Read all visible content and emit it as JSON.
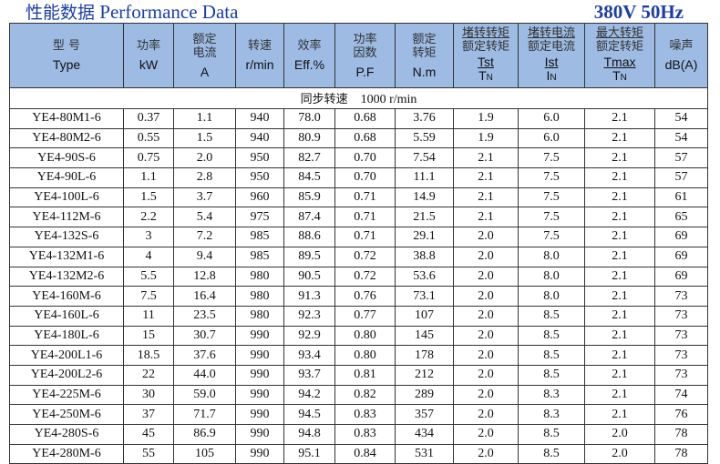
{
  "title_cn": "性能数据",
  "title_en": "Performance Data",
  "voltage": "380V 50Hz",
  "headers": [
    {
      "cn": [
        "型 号"
      ],
      "en": "Type"
    },
    {
      "cn": [
        "功率"
      ],
      "en": "kW"
    },
    {
      "cn": [
        "额定",
        "电流"
      ],
      "en": "A"
    },
    {
      "cn": [
        "转速"
      ],
      "en": "r/min"
    },
    {
      "cn": [
        "效率"
      ],
      "en": "Eff.%"
    },
    {
      "cn": [
        "功率",
        "因数"
      ],
      "en": "P.F"
    },
    {
      "cn": [
        "额定",
        "转矩"
      ],
      "en": "N.m"
    },
    {
      "cn_num": "堵转转矩",
      "cn_den": "额定转矩",
      "num": "Tst",
      "den": "T",
      "den_sub": "N"
    },
    {
      "cn_num": "堵转电流",
      "cn_den": "额定电流",
      "num": "Ist",
      "den": "I",
      "den_sub": "N"
    },
    {
      "cn_num": "最大转矩",
      "cn_den": "额定转矩",
      "num": "Tmax",
      "den": "T",
      "den_sub": "N"
    },
    {
      "cn": [
        "噪声"
      ],
      "en": "dB(A)"
    }
  ],
  "sync_speed": {
    "label": "同步转速",
    "value": "1000 r/min"
  },
  "rows": [
    [
      "YE4-80M1-6",
      "0.37",
      "1.1",
      "940",
      "78.0",
      "0.68",
      "3.76",
      "1.9",
      "6.0",
      "2.1",
      "54"
    ],
    [
      "YE4-80M2-6",
      "0.55",
      "1.5",
      "940",
      "80.9",
      "0.68",
      "5.59",
      "1.9",
      "6.0",
      "2.1",
      "54"
    ],
    [
      "YE4-90S-6",
      "0.75",
      "2.0",
      "950",
      "82.7",
      "0.70",
      "7.54",
      "2.1",
      "7.5",
      "2.1",
      "57"
    ],
    [
      "YE4-90L-6",
      "1.1",
      "2.8",
      "950",
      "84.5",
      "0.70",
      "11.1",
      "2.1",
      "7.5",
      "2.1",
      "57"
    ],
    [
      "YE4-100L-6",
      "1.5",
      "3.7",
      "960",
      "85.9",
      "0.71",
      "14.9",
      "2.1",
      "7.5",
      "2.1",
      "61"
    ],
    [
      "YE4-112M-6",
      "2.2",
      "5.4",
      "975",
      "87.4",
      "0.71",
      "21.5",
      "2.1",
      "7.5",
      "2.1",
      "65"
    ],
    [
      "YE4-132S-6",
      "3",
      "7.2",
      "985",
      "88.6",
      "0.71",
      "29.1",
      "2.0",
      "7.5",
      "2.1",
      "69"
    ],
    [
      "YE4-132M1-6",
      "4",
      "9.4",
      "985",
      "89.5",
      "0.72",
      "38.8",
      "2.0",
      "8.0",
      "2.1",
      "69"
    ],
    [
      "YE4-132M2-6",
      "5.5",
      "12.8",
      "980",
      "90.5",
      "0.72",
      "53.6",
      "2.0",
      "8.0",
      "2.1",
      "69"
    ],
    [
      "YE4-160M-6",
      "7.5",
      "16.4",
      "980",
      "91.3",
      "0.76",
      "73.1",
      "2.0",
      "8.0",
      "2.1",
      "73"
    ],
    [
      "YE4-160L-6",
      "11",
      "23.5",
      "980",
      "92.3",
      "0.77",
      "107",
      "2.0",
      "8.5",
      "2.1",
      "73"
    ],
    [
      "YE4-180L-6",
      "15",
      "30.7",
      "990",
      "92.9",
      "0.80",
      "145",
      "2.0",
      "8.5",
      "2.1",
      "73"
    ],
    [
      "YE4-200L1-6",
      "18.5",
      "37.6",
      "990",
      "93.4",
      "0.80",
      "178",
      "2.0",
      "8.5",
      "2.1",
      "73"
    ],
    [
      "YE4-200L2-6",
      "22",
      "44.0",
      "990",
      "93.7",
      "0.81",
      "212",
      "2.0",
      "8.5",
      "2.1",
      "73"
    ],
    [
      "YE4-225M-6",
      "30",
      "59.0",
      "990",
      "94.2",
      "0.82",
      "289",
      "2.0",
      "8.3",
      "2.1",
      "74"
    ],
    [
      "YE4-250M-6",
      "37",
      "71.7",
      "990",
      "94.5",
      "0.83",
      "357",
      "2.0",
      "8.3",
      "2.1",
      "76"
    ],
    [
      "YE4-280S-6",
      "45",
      "86.9",
      "990",
      "94.8",
      "0.83",
      "434",
      "2.0",
      "8.5",
      "2.0",
      "78"
    ],
    [
      "YE4-280M-6",
      "55",
      "105",
      "990",
      "95.1",
      "0.84",
      "531",
      "2.0",
      "8.5",
      "2.0",
      "78"
    ]
  ],
  "colors": {
    "title": "#1b3fa6",
    "header_bg": "#9dbbe3"
  }
}
